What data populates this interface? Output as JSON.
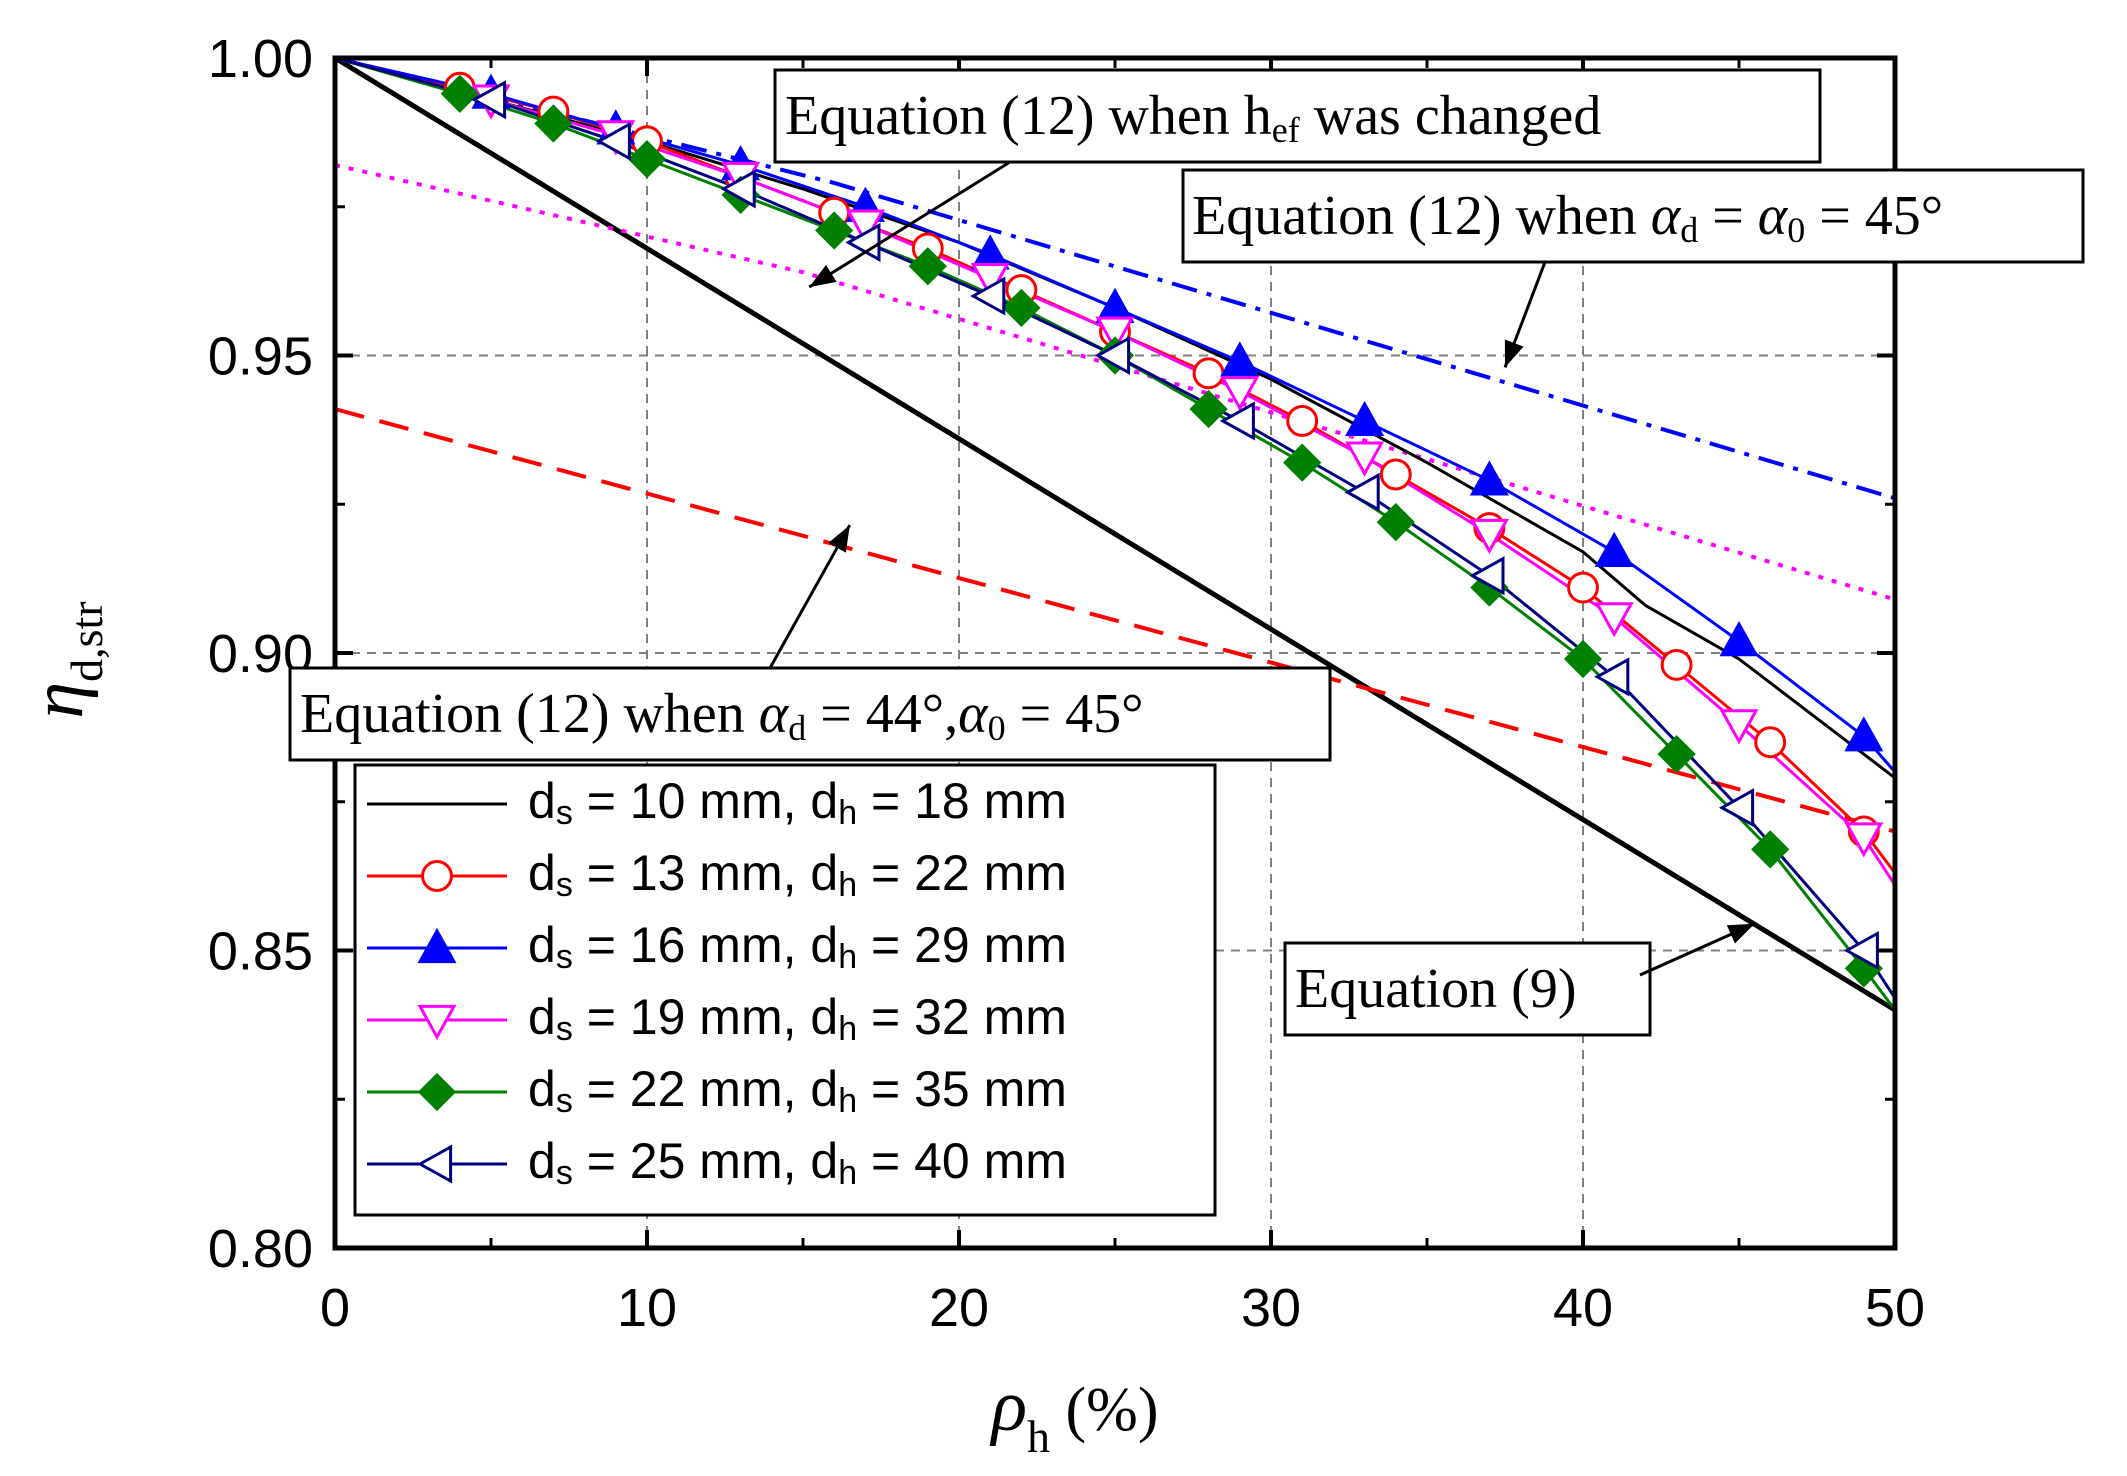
{
  "chart_data": {
    "type": "line",
    "title": "",
    "xlabel": {
      "main": "ρ",
      "sub": "h",
      "suffix": " (%)"
    },
    "ylabel": {
      "main": "η",
      "sub": "d,str"
    },
    "xlim": [
      0,
      50
    ],
    "ylim": [
      0.8,
      1.0
    ],
    "x_ticks": [
      "0",
      "10",
      "20",
      "30",
      "40",
      "50"
    ],
    "y_ticks": [
      "0.80",
      "0.85",
      "0.90",
      "0.95",
      "1.00"
    ],
    "grid": true,
    "legend_position": "bottom-left",
    "series": [
      {
        "name": "ds = 10 mm, dh = 18 mm",
        "legend": {
          "a": "d",
          "as": "s",
          "b": " = 10 mm, d",
          "bs": "h",
          "c": " = 18 mm"
        },
        "color": "#000000",
        "marker": "none",
        "filled": false,
        "x": [
          0,
          5,
          10,
          15,
          20,
          25,
          30,
          35,
          40,
          42,
          45,
          50
        ],
        "y": [
          1.0,
          0.993,
          0.986,
          0.978,
          0.969,
          0.958,
          0.946,
          0.932,
          0.917,
          0.908,
          0.899,
          0.879
        ]
      },
      {
        "name": "ds = 13 mm, dh = 22 mm",
        "legend": {
          "a": "d",
          "as": "s",
          "b": " = 13 mm, d",
          "bs": "h",
          "c": " = 22 mm"
        },
        "color": "#ff0000",
        "marker": "circle",
        "filled": false,
        "x": [
          0,
          4,
          7,
          10,
          13,
          16,
          19,
          22,
          25,
          28,
          31,
          34,
          37,
          40,
          43,
          46,
          49,
          50
        ],
        "y": [
          1.0,
          0.995,
          0.991,
          0.986,
          0.98,
          0.974,
          0.968,
          0.961,
          0.954,
          0.947,
          0.939,
          0.93,
          0.921,
          0.911,
          0.898,
          0.885,
          0.87,
          0.863
        ]
      },
      {
        "name": "ds = 16 mm, dh = 29 mm",
        "legend": {
          "a": "d",
          "as": "s",
          "b": " = 16 mm, d",
          "bs": "h",
          "c": " = 29 mm"
        },
        "color": "#0000ff",
        "marker": "triangle-up",
        "filled": true,
        "x": [
          0,
          5,
          9,
          13,
          17,
          21,
          25,
          29,
          33,
          37,
          41,
          45,
          49,
          50
        ],
        "y": [
          1.0,
          0.994,
          0.988,
          0.982,
          0.975,
          0.967,
          0.958,
          0.949,
          0.939,
          0.929,
          0.917,
          0.902,
          0.886,
          0.88
        ]
      },
      {
        "name": "ds = 19 mm, dh = 32 mm",
        "legend": {
          "a": "d",
          "as": "s",
          "b": " = 19 mm, d",
          "bs": "h",
          "c": " = 32 mm"
        },
        "color": "#ff00ff",
        "marker": "triangle-down",
        "filled": false,
        "x": [
          0,
          5,
          9,
          13,
          17,
          21,
          25,
          29,
          33,
          37,
          41,
          45,
          49,
          50
        ],
        "y": [
          1.0,
          0.993,
          0.987,
          0.98,
          0.972,
          0.963,
          0.954,
          0.944,
          0.933,
          0.92,
          0.906,
          0.888,
          0.869,
          0.861
        ]
      },
      {
        "name": "ds = 22 mm, dh = 35 mm",
        "legend": {
          "a": "d",
          "as": "s",
          "b": " = 22 mm, d",
          "bs": "h",
          "c": " = 35 mm"
        },
        "color": "#008000",
        "marker": "diamond",
        "filled": true,
        "x": [
          0,
          4,
          7,
          10,
          13,
          16,
          19,
          22,
          25,
          28,
          31,
          34,
          37,
          40,
          43,
          46,
          49,
          50
        ],
        "y": [
          1.0,
          0.994,
          0.989,
          0.983,
          0.977,
          0.971,
          0.965,
          0.958,
          0.95,
          0.941,
          0.932,
          0.922,
          0.911,
          0.899,
          0.883,
          0.867,
          0.847,
          0.84
        ]
      },
      {
        "name": "ds = 25 mm, dh = 40 mm",
        "legend": {
          "a": "d",
          "as": "s",
          "b": " = 25 mm, d",
          "bs": "h",
          "c": " = 40 mm"
        },
        "color": "#000080",
        "marker": "triangle-left",
        "filled": false,
        "x": [
          0,
          5,
          9,
          13,
          17,
          21,
          25,
          29,
          33,
          37,
          41,
          45,
          49,
          50
        ],
        "y": [
          1.0,
          0.993,
          0.986,
          0.978,
          0.969,
          0.96,
          0.95,
          0.939,
          0.927,
          0.913,
          0.896,
          0.874,
          0.85,
          0.842
        ]
      }
    ],
    "reference_lines": [
      {
        "name": "Equation (9)",
        "color": "#000000",
        "dash": "solid",
        "x": [
          0,
          50
        ],
        "y": [
          1.0,
          0.84
        ]
      },
      {
        "name": "Equation (12) when αd = α0 = 45°",
        "color": "#0000ff",
        "dash": "dashdot",
        "x": [
          0,
          16,
          50
        ],
        "y": [
          1.0,
          0.979,
          0.926
        ]
      },
      {
        "name": "Equation (12) when hef was changed",
        "color": "#ff00ff",
        "dash": "dot",
        "x": [
          0,
          15,
          50
        ],
        "y": [
          0.982,
          0.964,
          0.909
        ]
      },
      {
        "name": "Equation (12) when αd = 44°,α0 = 45°",
        "color": "#ff0000",
        "dash": "dash",
        "x": [
          0,
          50
        ],
        "y": [
          0.941,
          0.87
        ]
      }
    ],
    "annotations": [
      {
        "id": "hef",
        "text_a": "Equation (12) when h",
        "sub": "ef",
        "text_b": " was changed",
        "arrow_to": [
          15.2,
          0.9615
        ]
      },
      {
        "id": "a45",
        "text_a": "Equation (12) when ",
        "greek1": "α",
        "sub1": "d",
        "mid": " = ",
        "greek2": "α",
        "sub2": "0",
        "text_b": " = 45°",
        "arrow_to": [
          37.5,
          0.948
        ]
      },
      {
        "id": "a44",
        "text_a": "Equation (12) when ",
        "greek1": "α",
        "sub1": "d",
        "mid": " = 44°,",
        "greek2": "α",
        "sub2": "0",
        "text_b": " = 45°",
        "arrow_to": [
          16.5,
          0.9215
        ]
      },
      {
        "id": "eq9",
        "text": "Equation (9)",
        "arrow_to": [
          45.5,
          0.8545
        ]
      }
    ]
  }
}
